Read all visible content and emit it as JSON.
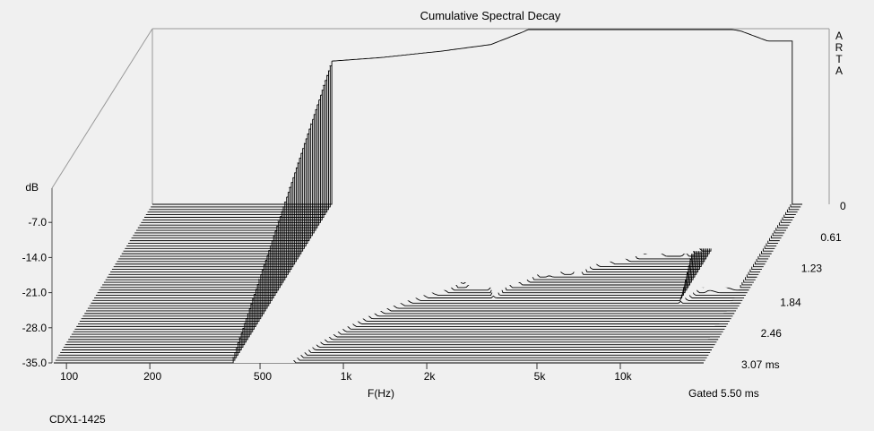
{
  "chart_data": {
    "type": "waterfall",
    "title": "Cumulative Spectral Decay",
    "xlabel": "F(Hz)",
    "ylabel": "dB",
    "x_scale": "log",
    "xlim": [
      90,
      20000
    ],
    "ylim": [
      -35.0,
      0
    ],
    "x_ticks": [
      "100",
      "200",
      "500",
      "1k",
      "2k",
      "5k",
      "10k"
    ],
    "x_tick_values": [
      100,
      200,
      500,
      1000,
      2000,
      5000,
      10000
    ],
    "y_ticks": [
      "-35.0",
      "-28.0",
      "-21.0",
      "-14.0",
      "-7.0"
    ],
    "y_tick_values": [
      -35,
      -28,
      -21,
      -14,
      -7
    ],
    "z_label": "ms",
    "z_ticks": [
      "0",
      "0.61",
      "1.23",
      "1.84",
      "2.46",
      "3.07 ms"
    ],
    "z_tick_values": [
      0,
      0.61,
      1.23,
      1.84,
      2.46,
      3.07
    ],
    "gate_text": "Gated 5.50 ms",
    "slices": 62,
    "response_start_hz": 400,
    "initial_response": {
      "freq_hz": [
        400,
        600,
        1000,
        1500,
        2000,
        2500,
        2900,
        3500,
        5000,
        8000,
        12000,
        15000
      ],
      "db": [
        -4.5,
        -3.8,
        -2.5,
        -1.2,
        1.5,
        5.0,
        6.0,
        5.5,
        4.0,
        3.2,
        1.5,
        -0.5
      ]
    },
    "resonances_hz": [
      1800,
      2500,
      3300,
      4500,
      7000,
      10000,
      13500
    ],
    "decay": "initial level falls with delay; lowest frequencies and the 13-15 kHz region decay slowest"
  },
  "watermark": "ARTA",
  "footer_label": "CDX1-1425"
}
